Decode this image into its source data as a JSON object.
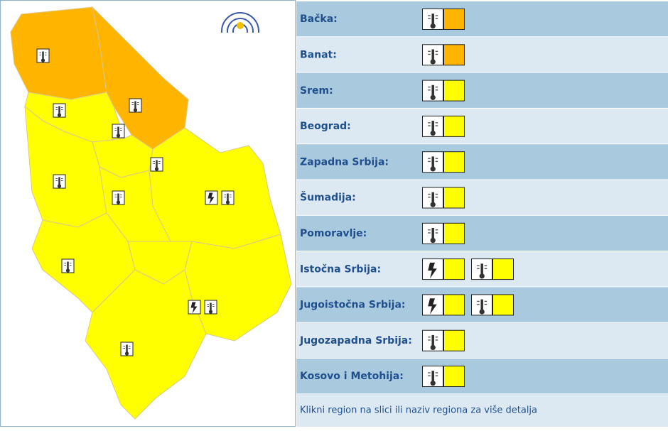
{
  "regions": [
    {
      "name": "Bačka:",
      "warnings": [
        {
          "icon": "thermometer",
          "color": "#ffb400"
        }
      ]
    },
    {
      "name": "Banat:",
      "warnings": [
        {
          "icon": "thermometer",
          "color": "#ffb400"
        }
      ]
    },
    {
      "name": "Srem:",
      "warnings": [
        {
          "icon": "thermometer",
          "color": "#ffff00"
        }
      ]
    },
    {
      "name": "Beograd:",
      "warnings": [
        {
          "icon": "thermometer",
          "color": "#ffff00"
        }
      ]
    },
    {
      "name": "Zapadna Srbija:",
      "warnings": [
        {
          "icon": "thermometer",
          "color": "#ffff00"
        }
      ]
    },
    {
      "name": "Šumadija:",
      "warnings": [
        {
          "icon": "thermometer",
          "color": "#ffff00"
        }
      ]
    },
    {
      "name": "Pomoravlje:",
      "warnings": [
        {
          "icon": "thermometer",
          "color": "#ffff00"
        }
      ]
    },
    {
      "name": "Istočna Srbija:",
      "warnings": [
        {
          "icon": "lightning",
          "color": "#ffff00"
        },
        {
          "icon": "thermometer",
          "color": "#ffff00"
        }
      ]
    },
    {
      "name": "Jugoistočna Srbija:",
      "warnings": [
        {
          "icon": "lightning",
          "color": "#ffff00"
        },
        {
          "icon": "thermometer",
          "color": "#ffff00"
        }
      ]
    },
    {
      "name": "Jugozapadna Srbija:",
      "warnings": [
        {
          "icon": "thermometer",
          "color": "#ffff00"
        }
      ]
    },
    {
      "name": "Kosovo i Metohija:",
      "warnings": [
        {
          "icon": "thermometer",
          "color": "#ffff00"
        }
      ]
    }
  ],
  "footer": "Klikni region na slici ili naziv regiona za više detalja"
}
